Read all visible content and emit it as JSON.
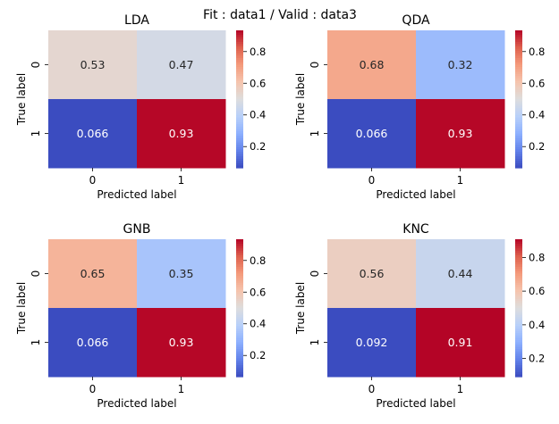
{
  "figure": {
    "suptitle": "Fit : data1 / Valid : data3"
  },
  "chart_data": [
    {
      "type": "heatmap",
      "title": "LDA",
      "xlabel": "Predicted label",
      "ylabel": "True label",
      "x_ticks": [
        "0",
        "1"
      ],
      "y_ticks": [
        "0",
        "1"
      ],
      "values": [
        [
          0.53,
          0.47
        ],
        [
          0.066,
          0.93
        ]
      ],
      "annotations": [
        [
          "0.53",
          "0.47"
        ],
        [
          "0.066",
          "0.93"
        ]
      ],
      "colormap": "coolwarm",
      "vmin": 0.066,
      "vmax": 0.934,
      "colorbar_ticks": [
        0.2,
        0.4,
        0.6,
        0.8
      ],
      "colorbar_tick_labels": [
        "0.2",
        "0.4",
        "0.6",
        "0.8"
      ]
    },
    {
      "type": "heatmap",
      "title": "QDA",
      "xlabel": "Predicted label",
      "ylabel": "True label",
      "x_ticks": [
        "0",
        "1"
      ],
      "y_ticks": [
        "0",
        "1"
      ],
      "values": [
        [
          0.68,
          0.32
        ],
        [
          0.066,
          0.93
        ]
      ],
      "annotations": [
        [
          "0.68",
          "0.32"
        ],
        [
          "0.066",
          "0.93"
        ]
      ],
      "colormap": "coolwarm",
      "vmin": 0.066,
      "vmax": 0.934,
      "colorbar_ticks": [
        0.2,
        0.4,
        0.6,
        0.8
      ],
      "colorbar_tick_labels": [
        "0.2",
        "0.4",
        "0.6",
        "0.8"
      ]
    },
    {
      "type": "heatmap",
      "title": "GNB",
      "xlabel": "Predicted label",
      "ylabel": "True label",
      "x_ticks": [
        "0",
        "1"
      ],
      "y_ticks": [
        "0",
        "1"
      ],
      "values": [
        [
          0.65,
          0.35
        ],
        [
          0.066,
          0.93
        ]
      ],
      "annotations": [
        [
          "0.65",
          "0.35"
        ],
        [
          "0.066",
          "0.93"
        ]
      ],
      "colormap": "coolwarm",
      "vmin": 0.066,
      "vmax": 0.934,
      "colorbar_ticks": [
        0.2,
        0.4,
        0.6,
        0.8
      ],
      "colorbar_tick_labels": [
        "0.2",
        "0.4",
        "0.6",
        "0.8"
      ]
    },
    {
      "type": "heatmap",
      "title": "KNC",
      "xlabel": "Predicted label",
      "ylabel": "True label",
      "x_ticks": [
        "0",
        "1"
      ],
      "y_ticks": [
        "0",
        "1"
      ],
      "values": [
        [
          0.56,
          0.44
        ],
        [
          0.092,
          0.91
        ]
      ],
      "annotations": [
        [
          "0.56",
          "0.44"
        ],
        [
          "0.092",
          "0.91"
        ]
      ],
      "colormap": "coolwarm",
      "vmin": 0.092,
      "vmax": 0.908,
      "colorbar_ticks": [
        0.2,
        0.4,
        0.6,
        0.8
      ],
      "colorbar_tick_labels": [
        "0.2",
        "0.4",
        "0.6",
        "0.8"
      ]
    }
  ]
}
